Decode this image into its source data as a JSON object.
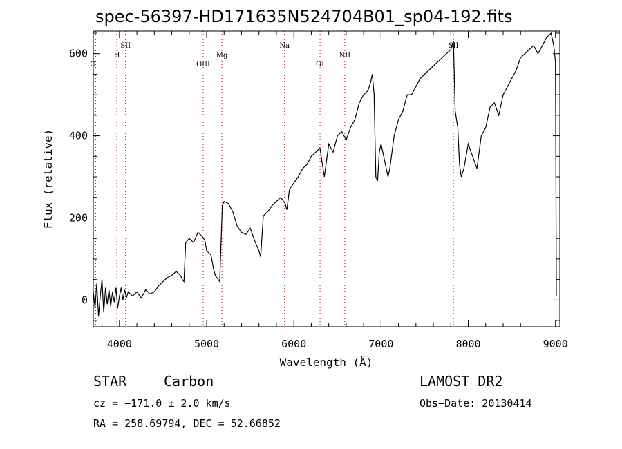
{
  "title": "spec-56397-HD171635N524704B01_sp04-192.fits",
  "info": {
    "class": "STAR",
    "subclass": "Carbon",
    "survey": "LAMOST DR2",
    "cz": "cz = −171.0 ± 2.0 km/s",
    "obsdate": "Obs−Date: 20130414",
    "radec": "RA = 258.69794, DEC =  52.66852"
  },
  "chart_data": {
    "type": "line",
    "xlabel": "Wavelength (Å)",
    "ylabel": "Flux (relative)",
    "xlim": [
      3700,
      9050
    ],
    "ylim": [
      -65,
      655
    ],
    "xticks": [
      4000,
      5000,
      6000,
      7000,
      8000,
      9000
    ],
    "yticks": [
      0,
      200,
      400,
      600
    ],
    "grid": false,
    "series_color": "#000000",
    "line_marker_color": "#c00000",
    "lines": [
      {
        "label": "OII",
        "x": 3727
      },
      {
        "label": "H",
        "x": 3970
      },
      {
        "label": "SII",
        "x": 4070
      },
      {
        "label": "OIII",
        "x": 4960
      },
      {
        "label": "Mg",
        "x": 5175
      },
      {
        "label": "Na",
        "x": 5893
      },
      {
        "label": "OI",
        "x": 6300
      },
      {
        "label": "NII",
        "x": 6584
      },
      {
        "label": "SII",
        "x": 7830
      }
    ],
    "spectrum": [
      [
        3700,
        20
      ],
      [
        3720,
        -20
      ],
      [
        3740,
        40
      ],
      [
        3760,
        -40
      ],
      [
        3780,
        10
      ],
      [
        3800,
        50
      ],
      [
        3820,
        -30
      ],
      [
        3840,
        30
      ],
      [
        3860,
        -10
      ],
      [
        3880,
        25
      ],
      [
        3900,
        -15
      ],
      [
        3920,
        20
      ],
      [
        3940,
        -5
      ],
      [
        3960,
        30
      ],
      [
        3980,
        -20
      ],
      [
        4000,
        10
      ],
      [
        4020,
        30
      ],
      [
        4040,
        0
      ],
      [
        4060,
        25
      ],
      [
        4080,
        5
      ],
      [
        4100,
        20
      ],
      [
        4150,
        10
      ],
      [
        4200,
        20
      ],
      [
        4250,
        5
      ],
      [
        4300,
        25
      ],
      [
        4350,
        15
      ],
      [
        4400,
        20
      ],
      [
        4450,
        35
      ],
      [
        4500,
        45
      ],
      [
        4550,
        55
      ],
      [
        4600,
        60
      ],
      [
        4650,
        70
      ],
      [
        4700,
        60
      ],
      [
        4720,
        50
      ],
      [
        4740,
        45
      ],
      [
        4760,
        140
      ],
      [
        4800,
        150
      ],
      [
        4850,
        140
      ],
      [
        4900,
        165
      ],
      [
        4950,
        155
      ],
      [
        4980,
        145
      ],
      [
        5000,
        120
      ],
      [
        5050,
        110
      ],
      [
        5080,
        75
      ],
      [
        5100,
        60
      ],
      [
        5150,
        45
      ],
      [
        5180,
        230
      ],
      [
        5200,
        240
      ],
      [
        5250,
        235
      ],
      [
        5300,
        215
      ],
      [
        5350,
        180
      ],
      [
        5400,
        165
      ],
      [
        5450,
        160
      ],
      [
        5500,
        175
      ],
      [
        5550,
        145
      ],
      [
        5600,
        120
      ],
      [
        5620,
        105
      ],
      [
        5650,
        205
      ],
      [
        5700,
        215
      ],
      [
        5750,
        230
      ],
      [
        5800,
        240
      ],
      [
        5850,
        250
      ],
      [
        5900,
        235
      ],
      [
        5920,
        220
      ],
      [
        5950,
        270
      ],
      [
        6000,
        285
      ],
      [
        6050,
        300
      ],
      [
        6100,
        320
      ],
      [
        6150,
        330
      ],
      [
        6200,
        350
      ],
      [
        6250,
        360
      ],
      [
        6300,
        370
      ],
      [
        6320,
        340
      ],
      [
        6350,
        300
      ],
      [
        6400,
        380
      ],
      [
        6450,
        360
      ],
      [
        6500,
        400
      ],
      [
        6550,
        410
      ],
      [
        6600,
        390
      ],
      [
        6650,
        420
      ],
      [
        6700,
        440
      ],
      [
        6750,
        480
      ],
      [
        6800,
        500
      ],
      [
        6850,
        510
      ],
      [
        6880,
        530
      ],
      [
        6900,
        550
      ],
      [
        6920,
        500
      ],
      [
        6940,
        300
      ],
      [
        6960,
        290
      ],
      [
        6980,
        360
      ],
      [
        7000,
        380
      ],
      [
        7050,
        330
      ],
      [
        7080,
        300
      ],
      [
        7100,
        320
      ],
      [
        7150,
        400
      ],
      [
        7200,
        440
      ],
      [
        7250,
        460
      ],
      [
        7300,
        500
      ],
      [
        7350,
        500
      ],
      [
        7400,
        520
      ],
      [
        7450,
        540
      ],
      [
        7500,
        550
      ],
      [
        7550,
        560
      ],
      [
        7600,
        570
      ],
      [
        7650,
        580
      ],
      [
        7700,
        590
      ],
      [
        7750,
        600
      ],
      [
        7800,
        610
      ],
      [
        7830,
        630
      ],
      [
        7850,
        460
      ],
      [
        7880,
        420
      ],
      [
        7900,
        330
      ],
      [
        7920,
        300
      ],
      [
        7950,
        320
      ],
      [
        8000,
        380
      ],
      [
        8050,
        350
      ],
      [
        8100,
        320
      ],
      [
        8150,
        400
      ],
      [
        8200,
        420
      ],
      [
        8250,
        470
      ],
      [
        8300,
        480
      ],
      [
        8350,
        450
      ],
      [
        8400,
        500
      ],
      [
        8450,
        520
      ],
      [
        8500,
        540
      ],
      [
        8550,
        560
      ],
      [
        8600,
        590
      ],
      [
        8650,
        600
      ],
      [
        8700,
        610
      ],
      [
        8750,
        620
      ],
      [
        8800,
        600
      ],
      [
        8850,
        620
      ],
      [
        8900,
        640
      ],
      [
        8950,
        650
      ],
      [
        8980,
        620
      ],
      [
        9000,
        580
      ],
      [
        9010,
        10
      ]
    ]
  }
}
